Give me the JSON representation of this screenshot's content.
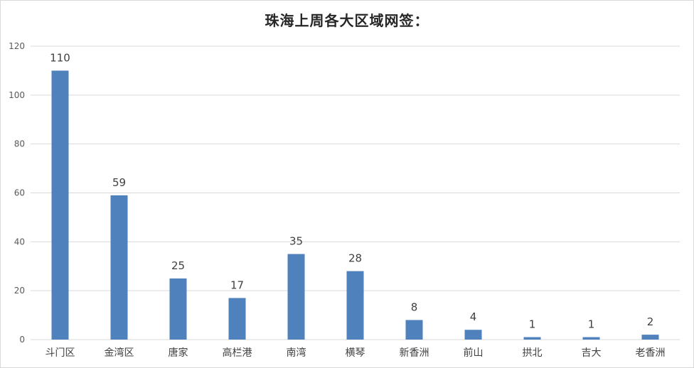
{
  "chart_data": {
    "type": "bar",
    "title": "珠海上周各大区域网签：",
    "xlabel": "",
    "ylabel": "",
    "categories": [
      "斗门区",
      "金湾区",
      "唐家",
      "高栏港",
      "南湾",
      "横琴",
      "新香洲",
      "前山",
      "拱北",
      "吉大",
      "老香洲"
    ],
    "values": [
      110,
      59,
      25,
      17,
      35,
      28,
      8,
      4,
      1,
      1,
      2
    ],
    "ylim": [
      0,
      120
    ],
    "yticks": [
      0,
      20,
      40,
      60,
      80,
      100,
      120
    ],
    "grid": true,
    "legend": "none",
    "bar_color": "#4f81bd",
    "grid_color": "#d9d9d9"
  }
}
